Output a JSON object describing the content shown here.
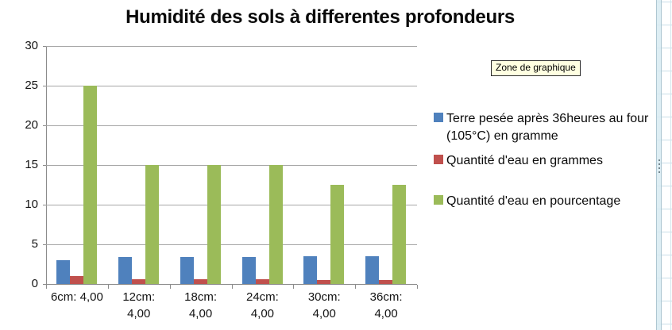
{
  "chart_data": {
    "type": "bar",
    "title": "Humidité des sols à differentes profondeurs",
    "categories": [
      "6cm: 4,00",
      "12cm: 4,00",
      "18cm: 4,00",
      "24cm: 4,00",
      "30cm: 4,00",
      "36cm: 4,00"
    ],
    "category_display": [
      [
        "6cm: 4,00"
      ],
      [
        "12cm:",
        "4,00"
      ],
      [
        "18cm:",
        "4,00"
      ],
      [
        "24cm:",
        "4,00"
      ],
      [
        "30cm:",
        "4,00"
      ],
      [
        "36cm:",
        "4,00"
      ]
    ],
    "series": [
      {
        "name": "Terre pesée après 36heures au four (105°C) en gramme",
        "display_lines": [
          "Terre pesée après 36heures au four",
          "(105°C) en gramme"
        ],
        "color": "#4F81BD",
        "values": [
          3,
          3.4,
          3.4,
          3.4,
          3.5,
          3.5
        ]
      },
      {
        "name": "Quantité d'eau en grammes",
        "display_lines": [
          "Quantité d'eau en grammes"
        ],
        "color": "#C0504D",
        "values": [
          1,
          0.6,
          0.6,
          0.6,
          0.5,
          0.5
        ]
      },
      {
        "name": "Quantité d'eau en pourcentage",
        "display_lines": [
          "Quantité d'eau en pourcentage"
        ],
        "color": "#9BBB59",
        "values": [
          25,
          15,
          15,
          15,
          12.5,
          12.5
        ]
      }
    ],
    "xlabel": "",
    "ylabel": "",
    "ylim": [
      0,
      30
    ],
    "yticks": [
      0,
      5,
      10,
      15,
      20,
      25,
      30
    ],
    "grid": true,
    "legend_position": "right"
  },
  "tooltip": {
    "label": "Zone de graphique"
  },
  "colors": {
    "series_blue": "#4F81BD",
    "series_red": "#C0504D",
    "series_green": "#9BBB59",
    "gridline": "#A6A6A6",
    "axis": "#8C8C8C",
    "tooltip_bg": "#FFFFE1",
    "sheet_gridline": "#C8DEE8",
    "strip_fill": "#D8EBF2",
    "strip_border": "#AEC7D2"
  }
}
